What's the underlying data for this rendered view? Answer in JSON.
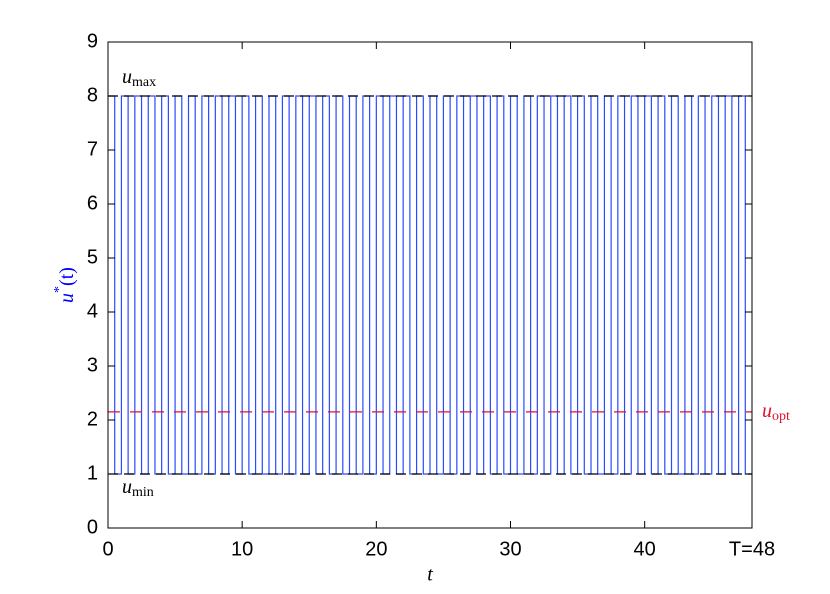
{
  "chart_data": {
    "type": "line",
    "x_label": "t",
    "y_label": {
      "base": "u",
      "sup": "*",
      "rest": "(t)",
      "color": "#0000ff"
    },
    "xlim": [
      0,
      48
    ],
    "ylim": [
      0,
      9
    ],
    "xticks": [
      0,
      10,
      20,
      30,
      40,
      {
        "value": 48,
        "label": "T=48"
      }
    ],
    "yticks": [
      0,
      1,
      2,
      3,
      4,
      5,
      6,
      7,
      8,
      9
    ],
    "drawstyle": "steps",
    "series": [
      {
        "color": "#2a4bff",
        "x": [
          0,
          0.5,
          1,
          1.5,
          2,
          2.5,
          3,
          3.5,
          4,
          4.5,
          5,
          5.5,
          6,
          6.5,
          7,
          7.5,
          8,
          8.5,
          9,
          9.5,
          10,
          10.5,
          11,
          11.5,
          12,
          12.5,
          13,
          13.5,
          14,
          14.5,
          15,
          15.5,
          16,
          16.5,
          17,
          17.5,
          18,
          18.5,
          19,
          19.5,
          20,
          20.5,
          21,
          21.5,
          22,
          22.5,
          23,
          23.5,
          24,
          24.5,
          25,
          25.5,
          26,
          26.5,
          27,
          27.5,
          28,
          28.5,
          29,
          29.5,
          30,
          30.5,
          31,
          31.5,
          32,
          32.5,
          33,
          33.5,
          34,
          34.5,
          35,
          35.5,
          36,
          36.5,
          37,
          37.5,
          38,
          38.5,
          39,
          39.5,
          40,
          40.5,
          41,
          41.5,
          42,
          42.5,
          43,
          43.5,
          44,
          44.5,
          45,
          45.5,
          46,
          46.5,
          47,
          47.5,
          48
        ],
        "values": [
          8,
          1,
          8,
          1,
          8,
          1,
          8,
          1,
          8,
          1,
          8,
          1,
          8,
          1,
          8,
          1,
          8,
          1,
          8,
          1,
          8,
          1,
          8,
          1,
          8,
          1,
          8,
          1,
          8,
          1,
          8,
          1,
          8,
          1,
          8,
          1,
          8,
          1,
          8,
          1,
          8,
          1,
          8,
          1,
          8,
          1,
          8,
          1,
          8,
          1,
          8,
          1,
          8,
          1,
          8,
          1,
          8,
          1,
          8,
          1,
          8,
          1,
          8,
          1,
          8,
          1,
          8,
          1,
          8,
          1,
          8,
          1,
          8,
          1,
          8,
          1,
          8,
          1,
          8,
          1,
          8,
          1,
          8,
          1,
          8,
          1,
          8,
          1,
          8,
          1,
          8,
          1,
          8,
          1,
          8,
          1,
          1
        ]
      }
    ],
    "hlines": [
      {
        "value": 8,
        "color": "#000000",
        "label": "u",
        "sub": "max",
        "label_side": "above-left"
      },
      {
        "value": 1,
        "color": "#000000",
        "label": "u",
        "sub": "min",
        "label_side": "below-left"
      },
      {
        "value": 2.15,
        "color": "#e0102a",
        "label": "u",
        "sub": "opt",
        "label_side": "right"
      }
    ]
  }
}
